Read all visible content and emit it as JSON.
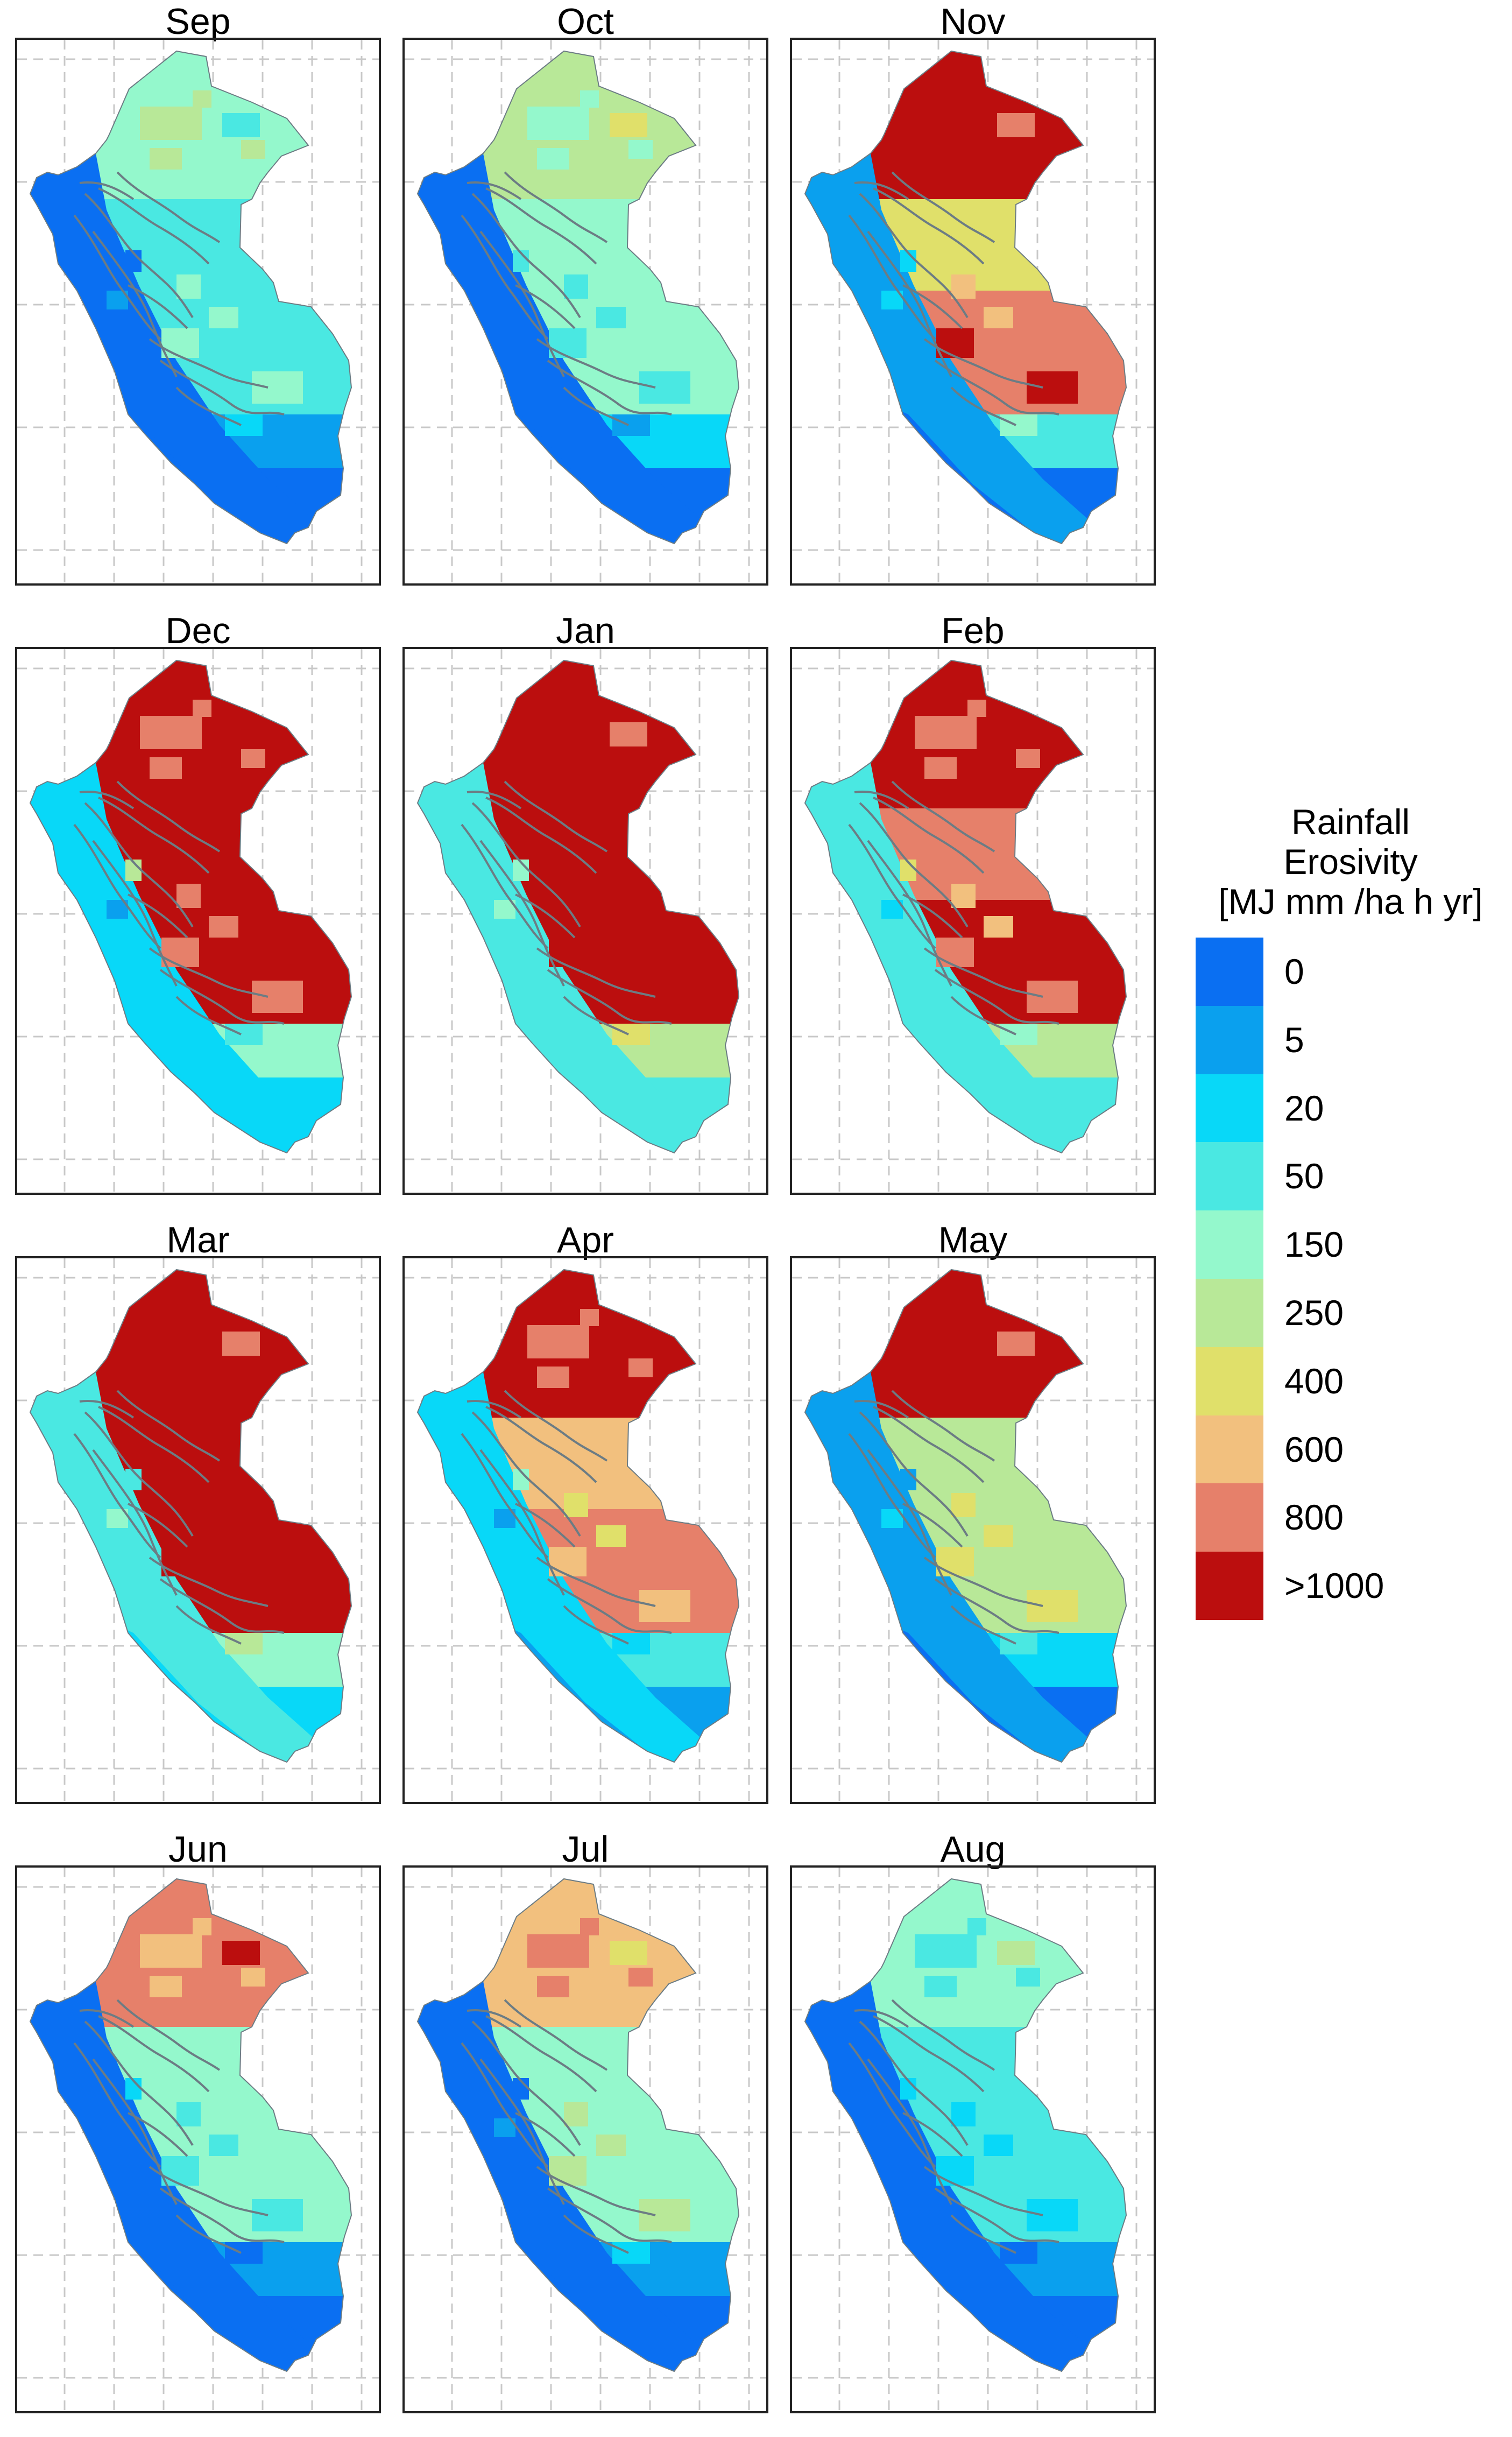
{
  "panels": [
    {
      "month": "Sep",
      "north": 4,
      "mid": 3,
      "amazon": 3,
      "andes": 1,
      "coast": 0,
      "south": 0
    },
    {
      "month": "Oct",
      "north": 5,
      "mid": 4,
      "amazon": 4,
      "andes": 2,
      "coast": 0,
      "south": 0
    },
    {
      "month": "Nov",
      "north": 9,
      "mid": 6,
      "amazon": 8,
      "andes": 3,
      "coast": 1,
      "south": 0
    },
    {
      "month": "Dec",
      "north": 9,
      "mid": 9,
      "amazon": 9,
      "andes": 4,
      "coast": 2,
      "south": 2
    },
    {
      "month": "Jan",
      "north": 9,
      "mid": 9,
      "amazon": 9,
      "andes": 5,
      "coast": 3,
      "south": 3
    },
    {
      "month": "Feb",
      "north": 9,
      "mid": 8,
      "amazon": 9,
      "andes": 5,
      "coast": 3,
      "south": 3
    },
    {
      "month": "Mar",
      "north": 9,
      "mid": 9,
      "amazon": 9,
      "andes": 4,
      "coast": 3,
      "south": 2
    },
    {
      "month": "Apr",
      "north": 9,
      "mid": 7,
      "amazon": 8,
      "andes": 3,
      "coast": 2,
      "south": 1
    },
    {
      "month": "May",
      "north": 9,
      "mid": 5,
      "amazon": 5,
      "andes": 2,
      "coast": 1,
      "south": 0
    },
    {
      "month": "Jun",
      "north": 8,
      "mid": 4,
      "amazon": 4,
      "andes": 1,
      "coast": 0,
      "south": 0
    },
    {
      "month": "Jul",
      "north": 7,
      "mid": 4,
      "amazon": 4,
      "andes": 1,
      "coast": 0,
      "south": 0
    },
    {
      "month": "Aug",
      "north": 4,
      "mid": 3,
      "amazon": 3,
      "andes": 1,
      "coast": 0,
      "south": 0
    }
  ],
  "legend": {
    "title_lines": [
      "Rainfall",
      "Erosivity",
      "[MJ mm /ha h yr]"
    ],
    "classes": [
      {
        "label": "0",
        "color": "#0a6ff2"
      },
      {
        "label": "5",
        "color": "#0aa0ee"
      },
      {
        "label": "20",
        "color": "#08d8f8"
      },
      {
        "label": "50",
        "color": "#4ae8e2"
      },
      {
        "label": "150",
        "color": "#94f8cc"
      },
      {
        "label": "250",
        "color": "#b8e898"
      },
      {
        "label": "400",
        "color": "#e0e06a"
      },
      {
        "label": "600",
        "color": "#f2c07e"
      },
      {
        "label": "800",
        "color": "#e6806a"
      },
      {
        "label": ">1000",
        "color": "#bb0e0e"
      }
    ]
  },
  "colors": {
    "river": "#6c7c84",
    "grid": "#c8c8c8",
    "frame": "#222222"
  }
}
